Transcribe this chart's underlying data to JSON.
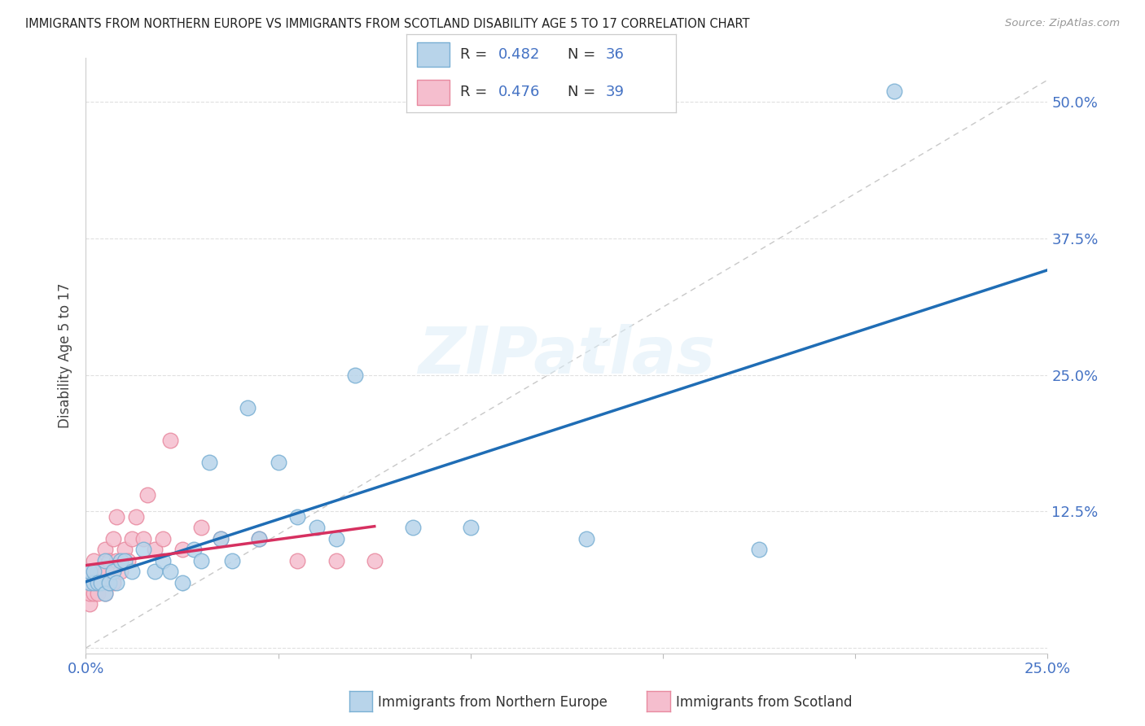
{
  "title": "IMMIGRANTS FROM NORTHERN EUROPE VS IMMIGRANTS FROM SCOTLAND DISABILITY AGE 5 TO 17 CORRELATION CHART",
  "source": "Source: ZipAtlas.com",
  "ylabel": "Disability Age 5 to 17",
  "xlim": [
    0.0,
    0.25
  ],
  "ylim": [
    -0.005,
    0.54
  ],
  "xticks": [
    0.0,
    0.05,
    0.1,
    0.15,
    0.2,
    0.25
  ],
  "xticklabels": [
    "0.0%",
    "",
    "",
    "",
    "",
    "25.0%"
  ],
  "ytick_positions": [
    0.0,
    0.125,
    0.25,
    0.375,
    0.5
  ],
  "ytick_labels": [
    "",
    "12.5%",
    "25.0%",
    "37.5%",
    "50.0%"
  ],
  "blue_fill": "#b8d4ea",
  "blue_edge": "#7ab0d4",
  "pink_fill": "#f5bece",
  "pink_edge": "#e88aa0",
  "line_blue": "#1f6db5",
  "line_pink": "#d63060",
  "dash_color": "#c8c8c8",
  "legend_R1": "0.482",
  "legend_N1": "36",
  "legend_R2": "0.476",
  "legend_N2": "39",
  "watermark": "ZIPatlas",
  "bg": "#ffffff",
  "grid_color": "#e0e0e0",
  "blue_scatter_x": [
    0.001,
    0.001,
    0.002,
    0.002,
    0.003,
    0.004,
    0.005,
    0.005,
    0.006,
    0.007,
    0.008,
    0.009,
    0.01,
    0.012,
    0.015,
    0.018,
    0.02,
    0.022,
    0.025,
    0.028,
    0.03,
    0.032,
    0.035,
    0.038,
    0.042,
    0.045,
    0.05,
    0.055,
    0.06,
    0.065,
    0.07,
    0.085,
    0.1,
    0.13,
    0.175,
    0.21
  ],
  "blue_scatter_y": [
    0.06,
    0.07,
    0.06,
    0.07,
    0.06,
    0.06,
    0.05,
    0.08,
    0.06,
    0.07,
    0.06,
    0.08,
    0.08,
    0.07,
    0.09,
    0.07,
    0.08,
    0.07,
    0.06,
    0.09,
    0.08,
    0.17,
    0.1,
    0.08,
    0.22,
    0.1,
    0.17,
    0.12,
    0.11,
    0.1,
    0.25,
    0.11,
    0.11,
    0.1,
    0.09,
    0.51
  ],
  "pink_scatter_x": [
    0.001,
    0.001,
    0.001,
    0.001,
    0.002,
    0.002,
    0.002,
    0.003,
    0.003,
    0.003,
    0.004,
    0.004,
    0.005,
    0.005,
    0.005,
    0.006,
    0.006,
    0.007,
    0.007,
    0.007,
    0.008,
    0.008,
    0.009,
    0.01,
    0.011,
    0.012,
    0.013,
    0.015,
    0.016,
    0.018,
    0.02,
    0.022,
    0.025,
    0.03,
    0.035,
    0.045,
    0.055,
    0.065,
    0.075
  ],
  "pink_scatter_y": [
    0.04,
    0.05,
    0.06,
    0.07,
    0.05,
    0.06,
    0.08,
    0.05,
    0.06,
    0.07,
    0.06,
    0.07,
    0.05,
    0.07,
    0.09,
    0.06,
    0.08,
    0.06,
    0.07,
    0.1,
    0.08,
    0.12,
    0.07,
    0.09,
    0.08,
    0.1,
    0.12,
    0.1,
    0.14,
    0.09,
    0.1,
    0.19,
    0.09,
    0.11,
    0.1,
    0.1,
    0.08,
    0.08,
    0.08
  ],
  "label_blue": "Immigrants from Northern Europe",
  "label_pink": "Immigrants from Scotland"
}
